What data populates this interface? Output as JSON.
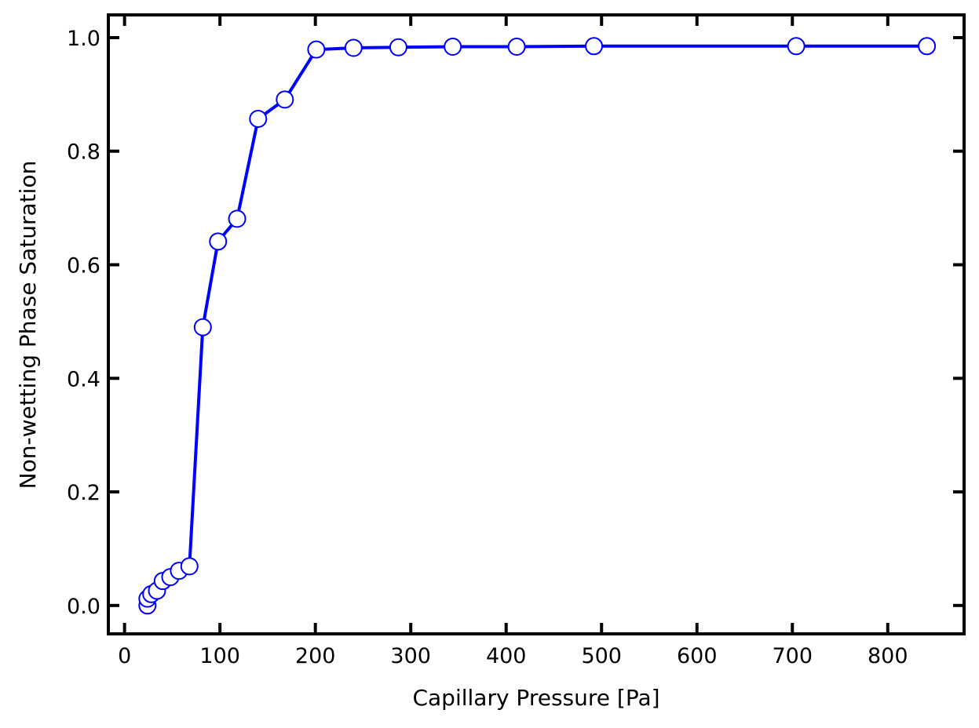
{
  "chart_data": {
    "type": "line",
    "xlabel": "Capillary Pressure [Pa]",
    "ylabel": "Non-wetting Phase Saturation",
    "xlim": [
      -17,
      880
    ],
    "ylim": [
      -0.05,
      1.04
    ],
    "xticks": [
      0,
      100,
      200,
      300,
      400,
      500,
      600,
      700,
      800
    ],
    "yticks": [
      0.0,
      0.2,
      0.4,
      0.6,
      0.8,
      1.0
    ],
    "xtick_labels": [
      "0",
      "100",
      "200",
      "300",
      "400",
      "500",
      "600",
      "700",
      "800"
    ],
    "ytick_labels": [
      "0.0",
      "0.2",
      "0.4",
      "0.6",
      "0.8",
      "1.0"
    ],
    "grid": false,
    "legend": "none",
    "line_color": "#0000ff",
    "marker_face": "#ffffff",
    "marker_edge": "#0000ff",
    "series": [
      {
        "x": [
          24,
          24,
          28,
          34,
          40,
          48,
          57,
          68,
          82,
          98,
          118,
          140,
          168,
          201,
          240,
          287,
          344,
          411,
          492,
          704,
          841
        ],
        "y": [
          0.0,
          0.012,
          0.02,
          0.026,
          0.043,
          0.05,
          0.061,
          0.069,
          0.49,
          0.641,
          0.681,
          0.857,
          0.891,
          0.979,
          0.982,
          0.983,
          0.984,
          0.984,
          0.985,
          0.985,
          0.985
        ]
      }
    ]
  }
}
